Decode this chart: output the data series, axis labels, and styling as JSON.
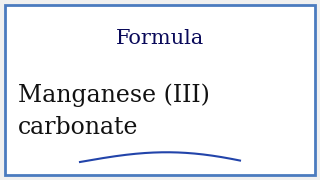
{
  "bg_color": "#f0f0f0",
  "inner_bg_color": "#ffffff",
  "border_color": "#4b7bbf",
  "border_linewidth": 2.0,
  "title_text": "Formula",
  "title_color": "#0a0a5a",
  "title_fontsize": 15,
  "line1_text": "Manganese (III)",
  "line2_text": "carbonate",
  "body_color": "#111111",
  "body_fontsize": 17,
  "curve_color": "#2244aa",
  "curve_linewidth": 1.5
}
